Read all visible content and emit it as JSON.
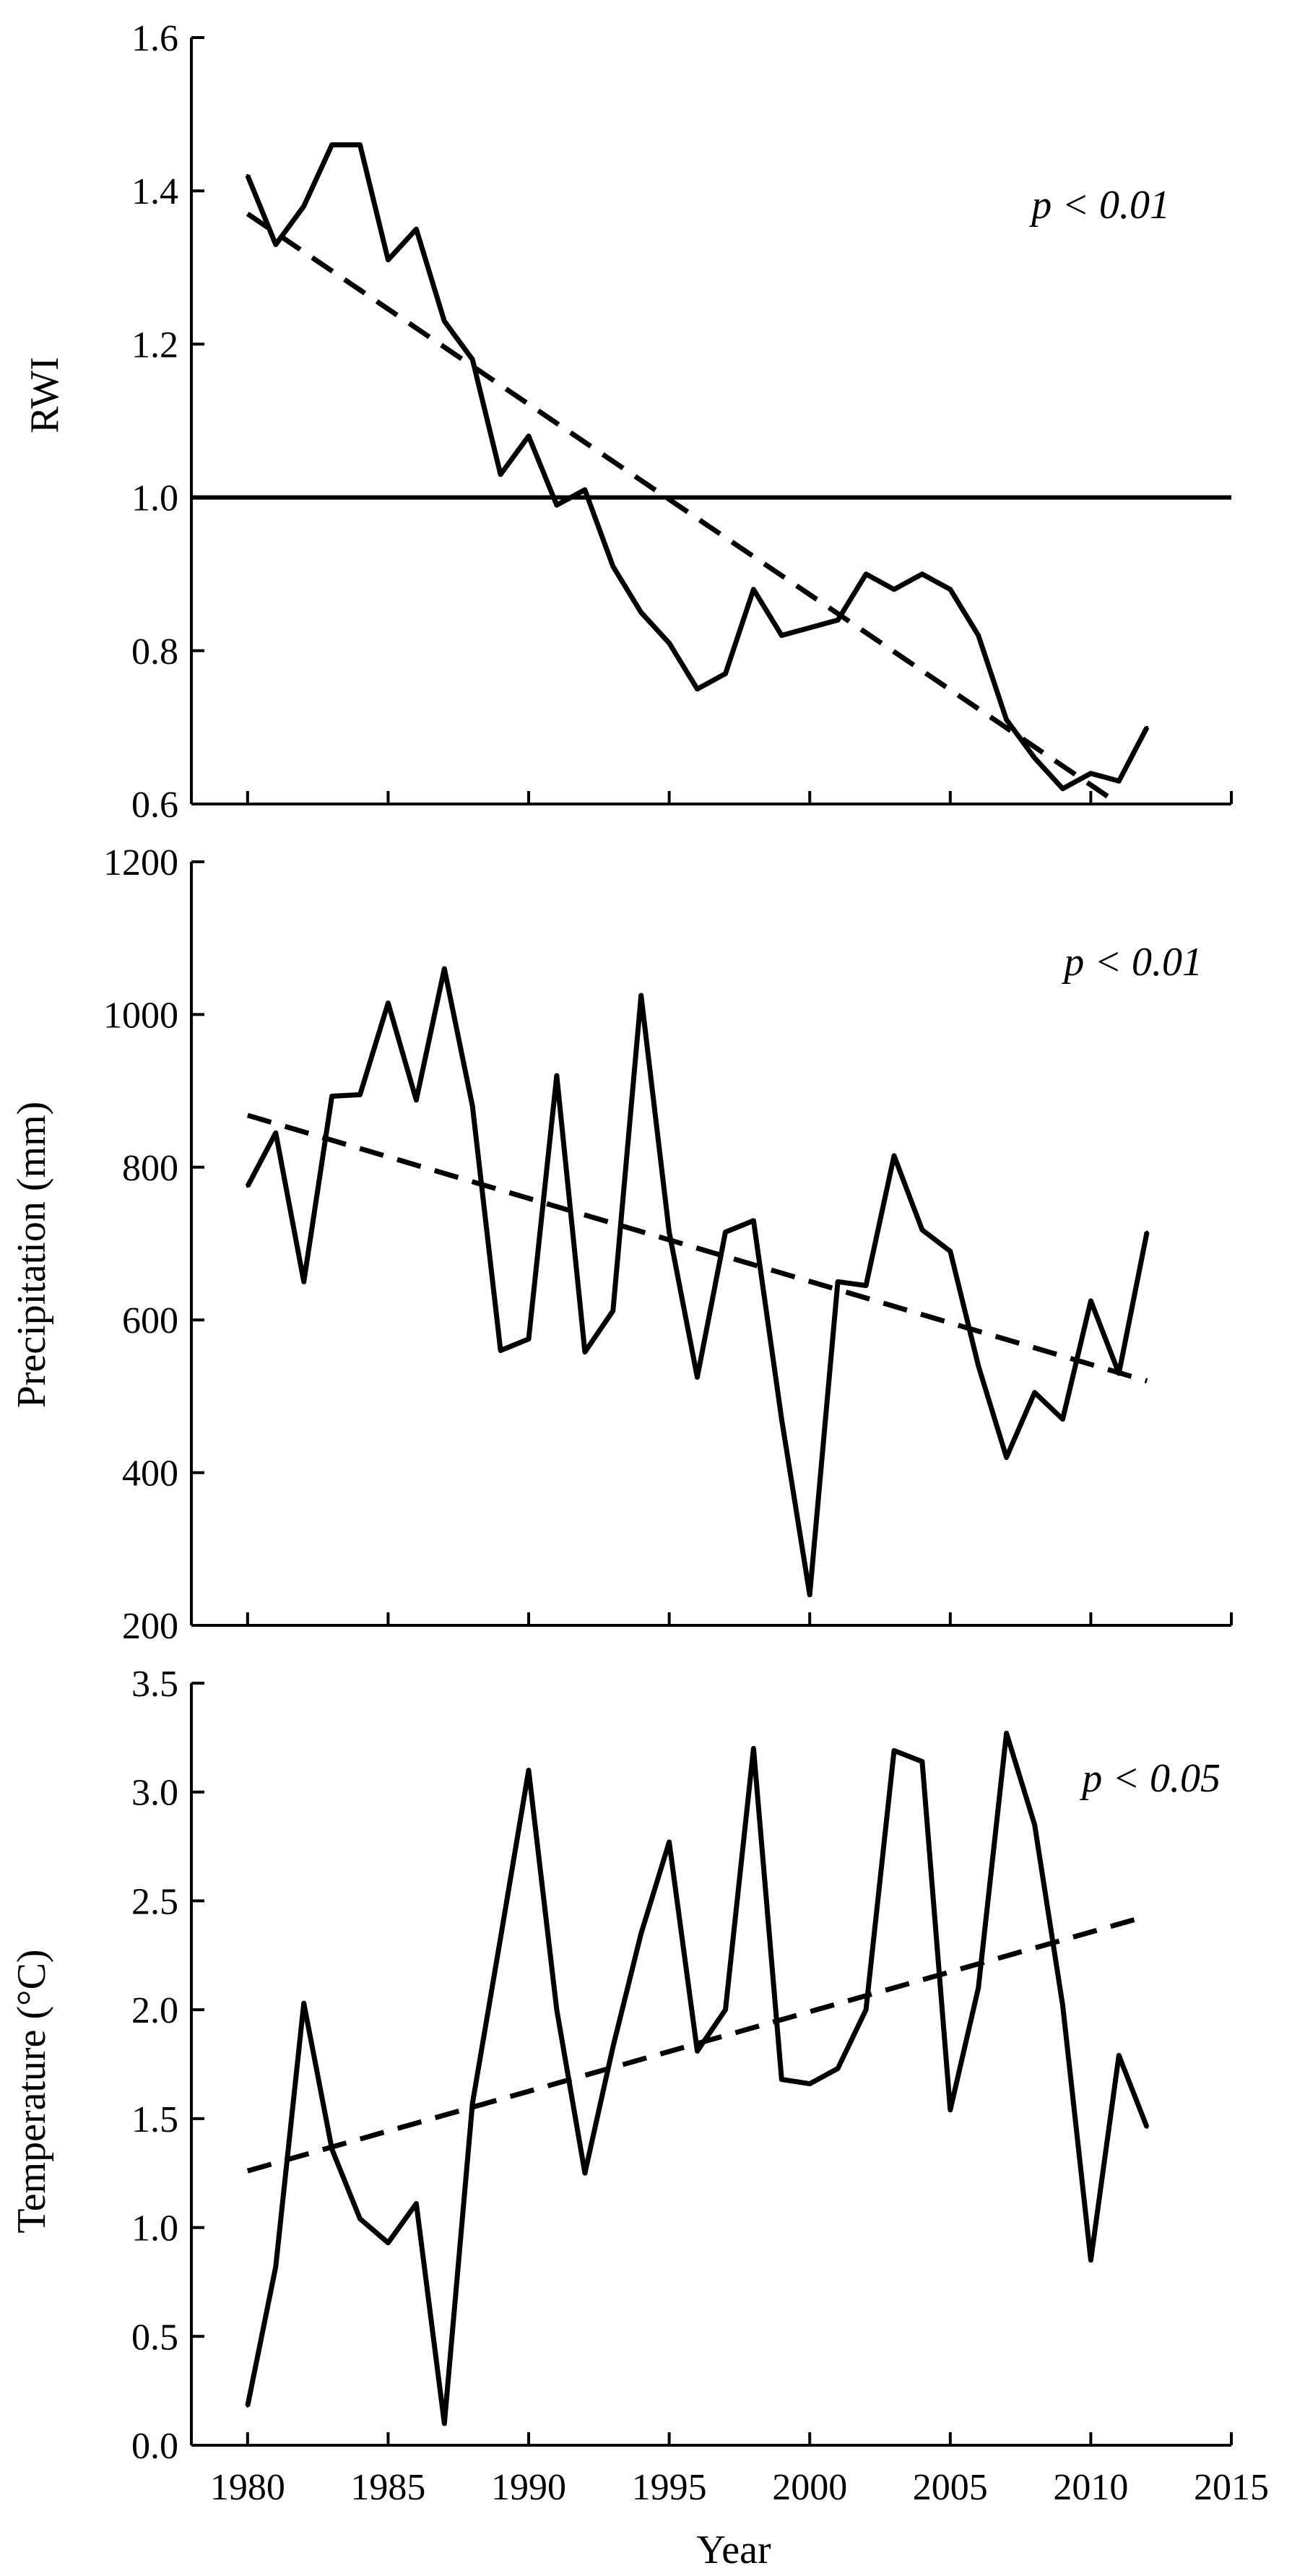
{
  "figure": {
    "xlabel": "Year",
    "x_tick_labels": [
      "1980",
      "1985",
      "1990",
      "1995",
      "2000",
      "2005",
      "2010",
      "2015"
    ]
  },
  "chart_data": [
    {
      "type": "line",
      "ylabel": "RWI",
      "annotation": "p < 0.01",
      "xlim": [
        1978,
        2015
      ],
      "ylim": [
        0.6,
        1.6
      ],
      "y_ticks": [
        0.6,
        0.8,
        1.0,
        1.2,
        1.4,
        1.6
      ],
      "y_tick_labels": [
        "0.6",
        "0.8",
        "1.0",
        "1.2",
        "1.4",
        "1.6"
      ],
      "reference_line": 1.0,
      "x": [
        1980,
        1981,
        1982,
        1983,
        1984,
        1985,
        1986,
        1987,
        1988,
        1989,
        1990,
        1991,
        1992,
        1993,
        1994,
        1995,
        1996,
        1997,
        1998,
        1999,
        2000,
        2001,
        2002,
        2003,
        2004,
        2005,
        2006,
        2007,
        2008,
        2009,
        2010,
        2011,
        2012
      ],
      "series": [
        {
          "values": [
            1.42,
            1.33,
            1.38,
            1.46,
            1.46,
            1.31,
            1.35,
            1.23,
            1.18,
            1.03,
            1.08,
            0.99,
            1.01,
            0.91,
            0.85,
            0.81,
            0.75,
            0.77,
            0.88,
            0.82,
            0.83,
            0.84,
            0.9,
            0.88,
            0.9,
            0.88,
            0.82,
            0.71,
            0.66,
            0.62,
            0.64,
            0.63,
            0.7
          ]
        }
      ],
      "trend": {
        "x": [
          1980,
          2011
        ],
        "y": [
          1.37,
          0.6
        ]
      }
    },
    {
      "type": "line",
      "ylabel": "Precipitation (mm)",
      "annotation": "p < 0.01",
      "xlim": [
        1978,
        2015
      ],
      "ylim": [
        200,
        1200
      ],
      "y_ticks": [
        200,
        400,
        600,
        800,
        1000,
        1200
      ],
      "y_tick_labels": [
        "200",
        "400",
        "600",
        "800",
        "1000",
        "1200"
      ],
      "x": [
        1980,
        1981,
        1982,
        1983,
        1984,
        1985,
        1986,
        1987,
        1988,
        1989,
        1990,
        1991,
        1992,
        1993,
        1994,
        1995,
        1996,
        1997,
        1998,
        1999,
        2000,
        2001,
        2002,
        2003,
        2004,
        2005,
        2006,
        2007,
        2008,
        2009,
        2010,
        2011,
        2012
      ],
      "series": [
        {
          "values": [
            775,
            845,
            650,
            893,
            895,
            1015,
            888,
            1060,
            880,
            560,
            575,
            920,
            558,
            612,
            1025,
            715,
            525,
            715,
            730,
            470,
            240,
            650,
            645,
            815,
            718,
            690,
            540,
            420,
            505,
            470,
            625,
            530,
            715
          ]
        }
      ],
      "trend": {
        "x": [
          1980,
          2012
        ],
        "y": [
          868,
          520
        ]
      }
    },
    {
      "type": "line",
      "ylabel": "Temperature (°C)",
      "annotation": "p < 0.05",
      "xlim": [
        1978,
        2015
      ],
      "ylim": [
        0.0,
        3.5
      ],
      "y_ticks": [
        0.0,
        0.5,
        1.0,
        1.5,
        2.0,
        2.5,
        3.0,
        3.5
      ],
      "y_tick_labels": [
        "0.0",
        "0.5",
        "1.0",
        "1.5",
        "2.0",
        "2.5",
        "3.0",
        "3.5"
      ],
      "x": [
        1980,
        1981,
        1982,
        1983,
        1984,
        1985,
        1986,
        1987,
        1988,
        1989,
        1990,
        1991,
        1992,
        1993,
        1994,
        1995,
        1996,
        1997,
        1998,
        1999,
        2000,
        2001,
        2002,
        2003,
        2004,
        2005,
        2006,
        2007,
        2008,
        2009,
        2010,
        2011,
        2012
      ],
      "series": [
        {
          "values": [
            0.18,
            0.82,
            2.03,
            1.36,
            1.04,
            0.93,
            1.11,
            0.1,
            1.57,
            2.33,
            3.1,
            2.0,
            1.25,
            1.83,
            2.35,
            2.77,
            1.81,
            2.0,
            3.2,
            1.68,
            1.66,
            1.73,
            2.0,
            3.19,
            3.14,
            1.54,
            2.1,
            3.27,
            2.85,
            2.02,
            0.85,
            1.79,
            1.46
          ]
        }
      ],
      "trend": {
        "x": [
          1980,
          2012
        ],
        "y": [
          1.26,
          2.43
        ]
      }
    }
  ]
}
